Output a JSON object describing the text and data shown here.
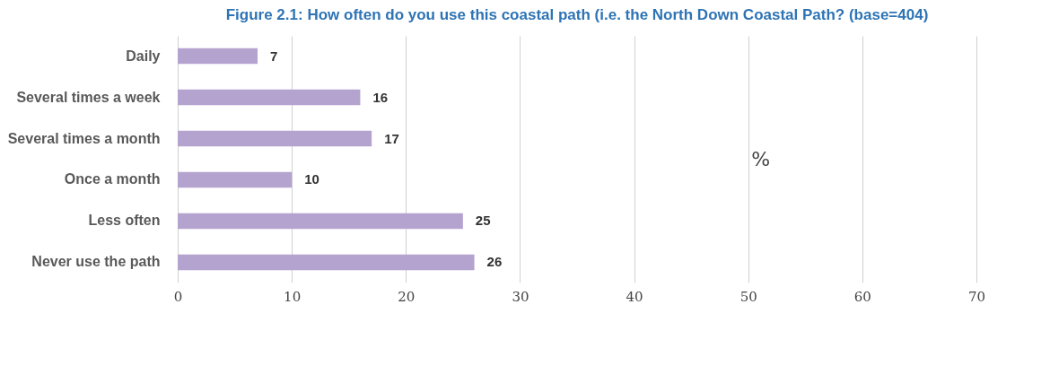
{
  "chart_data": {
    "type": "bar",
    "orientation": "horizontal",
    "title": "Figure 2.1: How often do you use this coastal path (i.e. the North Down Coastal Path? (base=404)",
    "categories": [
      "Daily",
      "Several times a week",
      "Several times a month",
      "Once a month",
      "Less often",
      "Never use the path"
    ],
    "values": [
      7,
      16,
      17,
      10,
      25,
      26
    ],
    "color": "#b4a3cf",
    "data_labels": true,
    "xlim": [
      0,
      70
    ],
    "xticks": [
      0,
      10,
      20,
      30,
      40,
      50,
      60,
      70
    ],
    "grid": "x",
    "annotations": [
      "%"
    ]
  }
}
